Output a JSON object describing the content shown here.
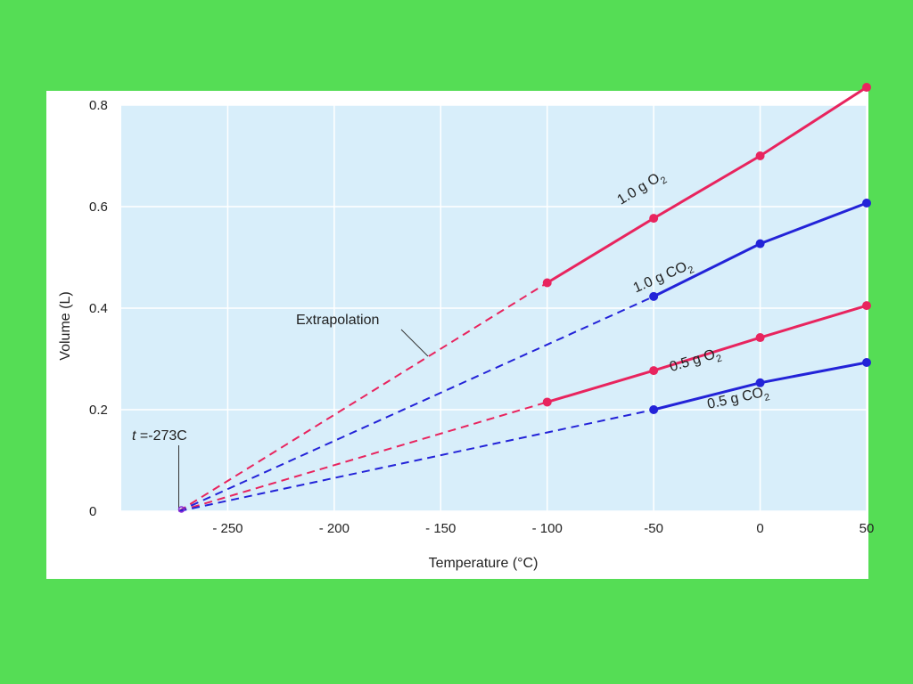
{
  "colors": {
    "background": "#55dd55",
    "panel": "#ffffff",
    "plot_area": "#d8eefa",
    "grid": "#ffffff",
    "o2": "#e8245e",
    "co2": "#2323d8"
  },
  "chart_data": {
    "type": "line",
    "title": "",
    "xlabel": "Temperature (°C)",
    "ylabel": "Volume (L)",
    "xlim": [
      -300,
      50
    ],
    "ylim": [
      0,
      0.8
    ],
    "x_ticks": [
      -250,
      -200,
      -150,
      -100,
      -50,
      0,
      50
    ],
    "x_tick_labels": [
      "- 250",
      "- 200",
      "- 150",
      "- 100",
      "-50",
      "0",
      "50"
    ],
    "y_ticks": [
      0,
      0.2,
      0.4,
      0.6,
      0.8
    ],
    "y_tick_labels": [
      "0",
      "0.2",
      "0.4",
      "0.6",
      "0.8"
    ],
    "grid": true,
    "series": [
      {
        "name": "1.0 g O2",
        "label_main": "1.0 g O",
        "label_sub": "2",
        "color": "#e8245e",
        "extrapolation_from": -273,
        "x": [
          -100,
          -50,
          0,
          50
        ],
        "y": [
          0.45,
          0.577,
          0.7,
          0.835
        ]
      },
      {
        "name": "1.0 g CO2",
        "label_main": "1.0 g CO",
        "label_sub": "2",
        "color": "#2323d8",
        "extrapolation_from": -273,
        "x": [
          -50,
          0,
          50
        ],
        "y": [
          0.423,
          0.527,
          0.607
        ]
      },
      {
        "name": "0.5 g O2",
        "label_main": "0.5 g O",
        "label_sub": "2",
        "color": "#e8245e",
        "extrapolation_from": -273,
        "x": [
          -100,
          -50,
          0,
          50
        ],
        "y": [
          0.215,
          0.277,
          0.342,
          0.405
        ]
      },
      {
        "name": "0.5 g CO2",
        "label_main": "0.5 g CO",
        "label_sub": "2",
        "color": "#2323d8",
        "extrapolation_from": -273,
        "x": [
          -50,
          0,
          50
        ],
        "y": [
          0.2,
          0.253,
          0.293
        ]
      }
    ],
    "annotations": {
      "extrapolation": "Extrapolation",
      "absolute_zero_prefix": "t",
      "absolute_zero_value": " =-273C",
      "absolute_zero_x": -273
    }
  }
}
